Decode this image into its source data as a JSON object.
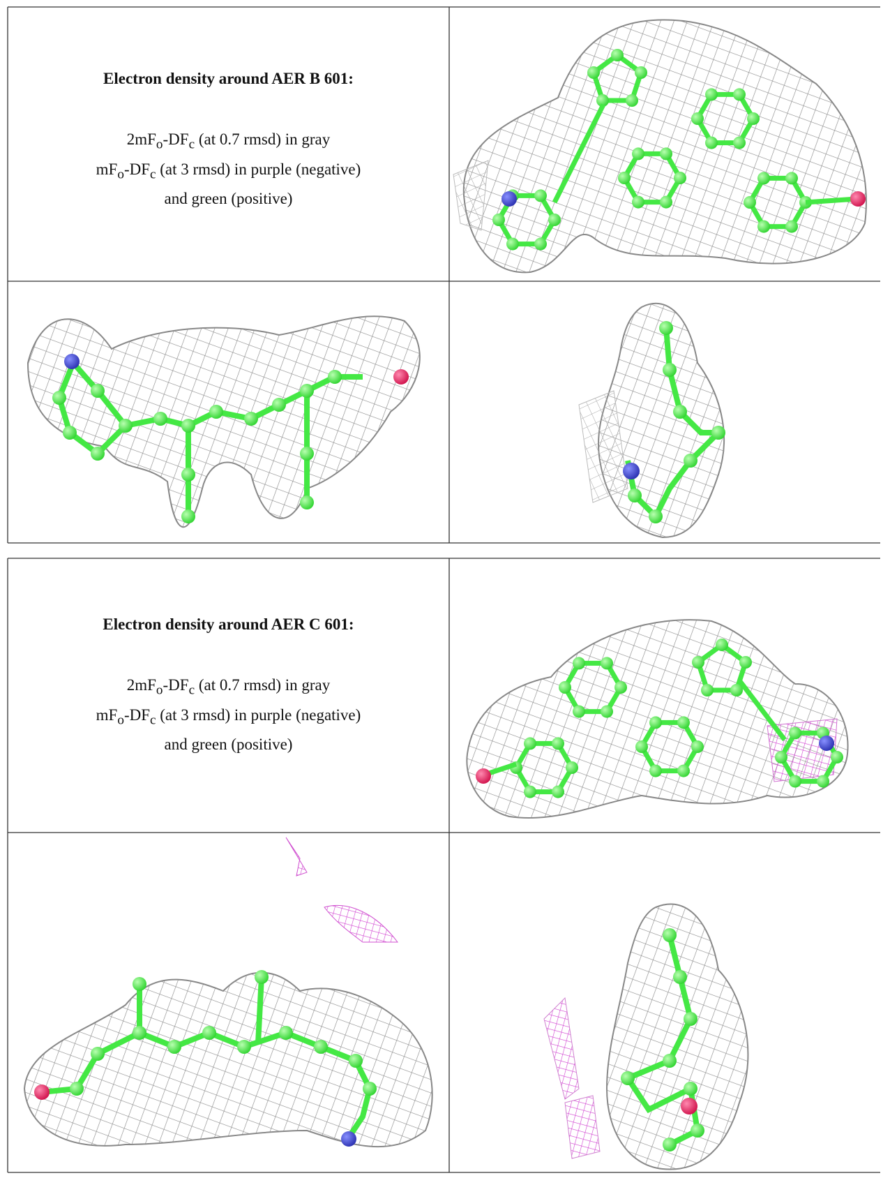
{
  "blocks": [
    {
      "title": "Electron density around AER B 601:",
      "lines": [
        [
          "2mF",
          "o",
          "-DF",
          "c",
          " (at 0.7 rmsd) in gray"
        ],
        [
          "mF",
          "o",
          "-DF",
          "c",
          " (at 3 rmsd) in purple (negative)"
        ],
        [
          "and green (positive)"
        ]
      ]
    },
    {
      "title": "Electron density around AER C 601:",
      "lines": [
        [
          "2mF",
          "o",
          "-DF",
          "c",
          " (at 0.7 rmsd) in gray"
        ],
        [
          "mF",
          "o",
          "-DF",
          "c",
          " (at 3 rmsd) in purple (negative)"
        ],
        [
          "and green (positive)"
        ]
      ]
    }
  ]
}
